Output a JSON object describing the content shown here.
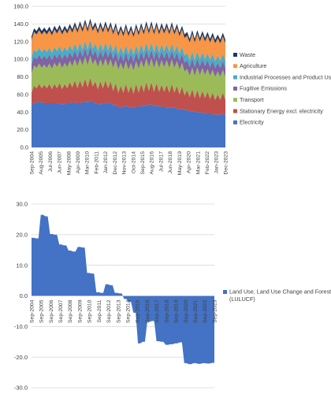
{
  "chart_data": [
    {
      "type": "area",
      "stacked": true,
      "title": "",
      "xlabel": "",
      "ylabel": "",
      "ylim": [
        0,
        160
      ],
      "yticks": [
        "0.0",
        "20.0",
        "40.0",
        "60.0",
        "80.0",
        "100.0",
        "120.0",
        "140.0",
        "160.0"
      ],
      "grid": true,
      "legend_position": "right",
      "x_tick_labels": [
        "Sep-2004",
        "Aug-2005",
        "Jul-2006",
        "Jun-2007",
        "May-2008",
        "Apr-2009",
        "Mar-2010",
        "Feb-2011",
        "Jan-2012",
        "Dec-2012",
        "Nov-2013",
        "Oct-2014",
        "Sep-2015",
        "Aug-2016",
        "Jul-2017",
        "Jun-2018",
        "May-2019",
        "Apr-2020",
        "Mar-2021",
        "Feb-2022",
        "Jan-2023",
        "Dec-2023"
      ],
      "series": [
        {
          "name": "Electricity",
          "color": "#4472c4",
          "values": [
            48,
            50,
            51,
            52,
            51,
            50,
            50,
            50,
            50,
            50,
            50,
            49,
            49,
            49,
            50,
            50,
            51,
            51,
            50,
            50,
            51,
            52,
            51,
            53,
            52,
            50,
            49,
            49,
            50,
            50,
            51,
            50,
            48,
            48,
            46,
            45,
            46,
            47,
            46,
            45,
            45,
            46,
            46,
            47,
            47,
            48,
            48,
            49,
            47,
            47,
            47,
            46,
            46,
            45,
            45,
            45,
            45,
            44,
            43,
            43,
            43,
            42,
            41,
            41,
            40,
            40,
            40,
            39,
            39,
            38,
            38,
            38,
            37,
            37,
            37,
            38,
            37
          ]
        },
        {
          "name": "Stationary Energy excl. electricity",
          "color": "#c0504d",
          "values": [
            14,
            20,
            16,
            20,
            16,
            21,
            17,
            22,
            16,
            22,
            17,
            24,
            17,
            23,
            17,
            24,
            17,
            25,
            17,
            26,
            17,
            26,
            17,
            26,
            17,
            25,
            17,
            26,
            17,
            26,
            16,
            25,
            16,
            25,
            16,
            25,
            16,
            25,
            16,
            25,
            16,
            26,
            16,
            25,
            16,
            26,
            16,
            25,
            16,
            26,
            16,
            25,
            17,
            26,
            17,
            27,
            17,
            26,
            17,
            26,
            16,
            23,
            16,
            25,
            16,
            25,
            16,
            25,
            17,
            25,
            17,
            24,
            17,
            23,
            17,
            24,
            17
          ]
        },
        {
          "name": "Transport",
          "color": "#9bbb59",
          "values": [
            22,
            23,
            23,
            23,
            23,
            23,
            23,
            23,
            23,
            24,
            24,
            24,
            24,
            24,
            24,
            24,
            24,
            24,
            25,
            25,
            25,
            25,
            25,
            25,
            25,
            25,
            25,
            25,
            25,
            25,
            25,
            25,
            26,
            26,
            26,
            26,
            26,
            26,
            26,
            26,
            26,
            26,
            27,
            27,
            27,
            27,
            27,
            27,
            27,
            27,
            27,
            28,
            28,
            28,
            28,
            28,
            28,
            28,
            28,
            27,
            27,
            24,
            24,
            25,
            25,
            26,
            26,
            26,
            26,
            26,
            26,
            26,
            26,
            26,
            26,
            26,
            26
          ]
        },
        {
          "name": "Fugitive Emissions",
          "color": "#8064a2",
          "values": [
            10,
            10,
            10,
            10,
            10,
            10,
            10,
            10,
            10,
            10,
            10,
            10,
            10,
            10,
            10,
            10,
            10,
            10,
            10,
            10,
            10,
            10,
            10,
            10,
            10,
            10,
            10,
            10,
            10,
            10,
            10,
            10,
            10,
            10,
            10,
            10,
            10,
            10,
            10,
            10,
            10,
            10,
            10,
            10,
            10,
            10,
            10,
            10,
            10,
            10,
            10,
            10,
            10,
            10,
            10,
            10,
            10,
            10,
            10,
            10,
            10,
            10,
            10,
            10,
            10,
            10,
            10,
            10,
            10,
            10,
            10,
            10,
            10,
            10,
            10,
            10,
            10
          ]
        },
        {
          "name": "Industrial Processes and Product Use",
          "color": "#4bacc6",
          "values": [
            8,
            8,
            8,
            8,
            8,
            8,
            8,
            8,
            8,
            8,
            8,
            8,
            8,
            8,
            8,
            8,
            8,
            8,
            8,
            8,
            8,
            8,
            8,
            8,
            8,
            8,
            8,
            8,
            8,
            8,
            8,
            8,
            8,
            8,
            8,
            8,
            8,
            8,
            8,
            8,
            8,
            8,
            8,
            8,
            8,
            8,
            8,
            8,
            8,
            8,
            8,
            8,
            8,
            8,
            8,
            8,
            8,
            8,
            8,
            8,
            8,
            8,
            8,
            8,
            8,
            8,
            8,
            8,
            8,
            8,
            8,
            8,
            8,
            8,
            8,
            8,
            8
          ]
        },
        {
          "name": "Agriculture",
          "color": "#f79646",
          "values": [
            20,
            20,
            20,
            20,
            20,
            20,
            20,
            20,
            20,
            20,
            20,
            20,
            20,
            20,
            20,
            20,
            20,
            20,
            20,
            20,
            20,
            20,
            20,
            20,
            20,
            20,
            20,
            20,
            20,
            20,
            20,
            20,
            20,
            20,
            20,
            20,
            20,
            20,
            20,
            20,
            20,
            20,
            20,
            20,
            20,
            20,
            20,
            20,
            20,
            20,
            20,
            20,
            20,
            20,
            20,
            20,
            20,
            20,
            20,
            20,
            20,
            20,
            20,
            20,
            20,
            20,
            20,
            20,
            20,
            20,
            20,
            20,
            20,
            20,
            20,
            20,
            20
          ]
        },
        {
          "name": "Waste",
          "color": "#1f3864",
          "values": [
            4,
            4,
            4,
            4,
            4,
            4,
            4,
            4,
            4,
            4,
            4,
            4,
            4,
            4,
            4,
            4,
            4,
            4,
            4,
            4,
            4,
            4,
            4,
            4,
            4,
            4,
            4,
            4,
            4,
            4,
            4,
            4,
            4,
            4,
            4,
            4,
            4,
            4,
            4,
            4,
            4,
            4,
            4,
            4,
            4,
            4,
            4,
            4,
            4,
            4,
            4,
            4,
            4,
            4,
            4,
            4,
            4,
            4,
            4,
            4,
            4,
            4,
            4,
            4,
            4,
            4,
            4,
            4,
            4,
            4,
            4,
            4,
            4,
            4,
            4,
            4,
            4
          ]
        }
      ]
    },
    {
      "type": "area",
      "title": "",
      "xlabel": "",
      "ylabel": "",
      "ylim": [
        -30,
        30
      ],
      "yticks": [
        "-30.0",
        "-20.0",
        "-10.0",
        "0.0",
        "10.0",
        "20.0",
        "30.0"
      ],
      "grid": true,
      "legend_position": "right",
      "x_tick_labels": [
        "Sep-2004",
        "Sep-2005",
        "Sep-2006",
        "Sep-2007",
        "Sep-2008",
        "Sep-2009",
        "Sep-2010",
        "Sep-2011",
        "Sep-2012",
        "Sep-2013",
        "Sep-2014",
        "Sep-2015",
        "Sep-2016",
        "Sep-2017",
        "Sep-2018",
        "Sep-2019",
        "Sep-2020",
        "Sep-2021",
        "Sep-2022",
        "Sep-2023"
      ],
      "series": [
        {
          "name": "Land Use, Land Use Change and Forestry (LULUCF)",
          "color": "#4472c4",
          "values": [
            19.0,
            19.0,
            18.8,
            18.8,
            26.5,
            26.5,
            26.0,
            26.0,
            20.2,
            20.2,
            20.0,
            20.0,
            16.8,
            16.8,
            16.5,
            16.5,
            14.8,
            14.8,
            14.5,
            14.5,
            16.0,
            16.0,
            15.8,
            15.8,
            7.5,
            7.5,
            7.3,
            7.3,
            1.2,
            1.2,
            1.0,
            1.0,
            3.8,
            3.8,
            3.5,
            3.5,
            1.0,
            1.0,
            0.8,
            0.8,
            -1.0,
            -1.0,
            -2.0,
            -2.0,
            -5.5,
            -5.5,
            -15.5,
            -15.5,
            -15.0,
            -15.0,
            -8.5,
            -8.5,
            -8.2,
            -8.2,
            -14.8,
            -14.8,
            -15.0,
            -15.0,
            -16.0,
            -16.0,
            -15.8,
            -15.8,
            -15.5,
            -15.5,
            -15.2,
            -15.2,
            -22.0,
            -22.0,
            -22.3,
            -22.3,
            -22.0,
            -22.0,
            -22.2,
            -22.2,
            -22.0,
            -22.0,
            -22.1,
            -22.1,
            -21.9,
            -21.9
          ]
        }
      ]
    }
  ]
}
